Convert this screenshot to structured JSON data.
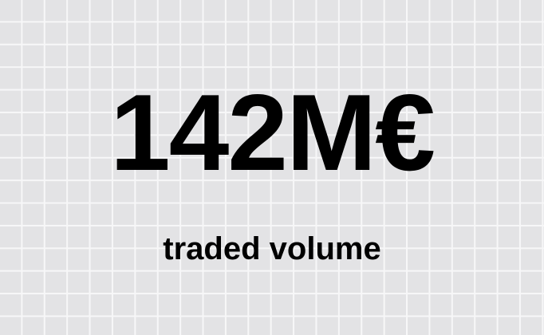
{
  "stat": {
    "value": "142M€",
    "label": "traded volume"
  },
  "colors": {
    "background": "#e3e3e5",
    "grid_lines": "#f7f7f8",
    "text": "#000000"
  }
}
